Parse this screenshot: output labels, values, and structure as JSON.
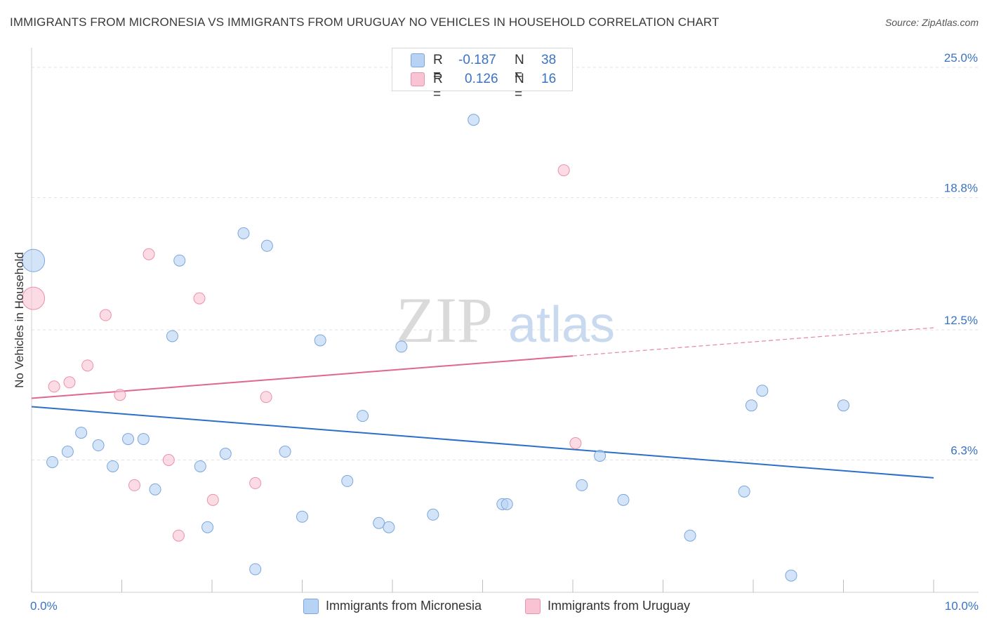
{
  "title": "IMMIGRANTS FROM MICRONESIA VS IMMIGRANTS FROM URUGUAY NO VEHICLES IN HOUSEHOLD CORRELATION CHART",
  "source": "Source: ZipAtlas.com",
  "watermark": {
    "zip": "ZIP",
    "atlas": "atlas"
  },
  "legend": {
    "r_label": "R =",
    "n_label": "N =",
    "rows": [
      {
        "r": "-0.187",
        "n": "38"
      },
      {
        "r": "0.126",
        "n": "16"
      }
    ]
  },
  "colors": {
    "micronesia_fill": "#b7d2f3",
    "micronesia_stroke": "#7aa6de",
    "micronesia_line": "#2b6fcb",
    "uruguay_fill": "#f8c4d3",
    "uruguay_stroke": "#ec90ab",
    "uruguay_line": "#e0668f",
    "tick_label": "#3b73c4"
  },
  "chart_data": {
    "type": "scatter",
    "title": "IMMIGRANTS FROM MICRONESIA VS IMMIGRANTS FROM URUGUAY NO VEHICLES IN HOUSEHOLD CORRELATION CHART",
    "xlabel": "",
    "ylabel": "No Vehicles in Household",
    "xlim": [
      0,
      10
    ],
    "ylim": [
      0,
      25.6
    ],
    "x_tick_labels": [
      "0.0%",
      "10.0%"
    ],
    "y_ticks": [
      6.3,
      12.5,
      18.8,
      25.0
    ],
    "y_tick_labels": [
      "6.3%",
      "12.5%",
      "18.8%",
      "25.0%"
    ],
    "grid": true,
    "legend_position": "top-center",
    "series": [
      {
        "name": "Immigrants from Micronesia",
        "points": [
          {
            "x": 0.02,
            "y": 15.8,
            "big": true
          },
          {
            "x": 0.23,
            "y": 6.2
          },
          {
            "x": 0.4,
            "y": 6.7
          },
          {
            "x": 0.55,
            "y": 7.6
          },
          {
            "x": 0.74,
            "y": 7.0
          },
          {
            "x": 0.9,
            "y": 6.0
          },
          {
            "x": 1.07,
            "y": 7.3
          },
          {
            "x": 1.24,
            "y": 7.3
          },
          {
            "x": 1.37,
            "y": 4.9
          },
          {
            "x": 1.56,
            "y": 12.2
          },
          {
            "x": 1.64,
            "y": 15.8
          },
          {
            "x": 1.87,
            "y": 6.0
          },
          {
            "x": 1.95,
            "y": 3.1
          },
          {
            "x": 2.15,
            "y": 6.6
          },
          {
            "x": 2.35,
            "y": 17.1
          },
          {
            "x": 2.48,
            "y": 1.1
          },
          {
            "x": 2.61,
            "y": 16.5
          },
          {
            "x": 2.81,
            "y": 6.7
          },
          {
            "x": 3.0,
            "y": 3.6
          },
          {
            "x": 3.2,
            "y": 12.0
          },
          {
            "x": 3.5,
            "y": 5.3
          },
          {
            "x": 3.67,
            "y": 8.4
          },
          {
            "x": 3.85,
            "y": 3.3
          },
          {
            "x": 3.96,
            "y": 3.1
          },
          {
            "x": 4.1,
            "y": 11.7
          },
          {
            "x": 4.45,
            "y": 3.7
          },
          {
            "x": 4.9,
            "y": 22.5
          },
          {
            "x": 5.22,
            "y": 4.2
          },
          {
            "x": 5.27,
            "y": 4.2
          },
          {
            "x": 6.1,
            "y": 5.1
          },
          {
            "x": 6.3,
            "y": 6.5
          },
          {
            "x": 6.56,
            "y": 4.4
          },
          {
            "x": 7.3,
            "y": 2.7
          },
          {
            "x": 7.9,
            "y": 4.8
          },
          {
            "x": 7.98,
            "y": 8.9
          },
          {
            "x": 8.1,
            "y": 9.6
          },
          {
            "x": 8.42,
            "y": 0.8
          },
          {
            "x": 9.0,
            "y": 8.9
          }
        ],
        "trend": {
          "x": [
            0,
            10
          ],
          "y": [
            8.84,
            5.45
          ],
          "dashed_from_x": null
        }
      },
      {
        "name": "Immigrants from Uruguay",
        "points": [
          {
            "x": 0.02,
            "y": 14.0,
            "big": true
          },
          {
            "x": 0.25,
            "y": 9.8
          },
          {
            "x": 0.42,
            "y": 10.0
          },
          {
            "x": 0.62,
            "y": 10.8
          },
          {
            "x": 0.82,
            "y": 13.2
          },
          {
            "x": 0.98,
            "y": 9.4
          },
          {
            "x": 1.14,
            "y": 5.1
          },
          {
            "x": 1.3,
            "y": 16.1
          },
          {
            "x": 1.52,
            "y": 6.3
          },
          {
            "x": 1.63,
            "y": 2.7
          },
          {
            "x": 1.86,
            "y": 14.0
          },
          {
            "x": 2.01,
            "y": 4.4
          },
          {
            "x": 2.48,
            "y": 5.2
          },
          {
            "x": 2.6,
            "y": 9.3
          },
          {
            "x": 5.9,
            "y": 20.1
          },
          {
            "x": 6.03,
            "y": 7.1
          }
        ],
        "trend": {
          "x": [
            0,
            10
          ],
          "y": [
            9.24,
            12.6
          ],
          "dashed_from_x": 6.0
        }
      }
    ]
  }
}
